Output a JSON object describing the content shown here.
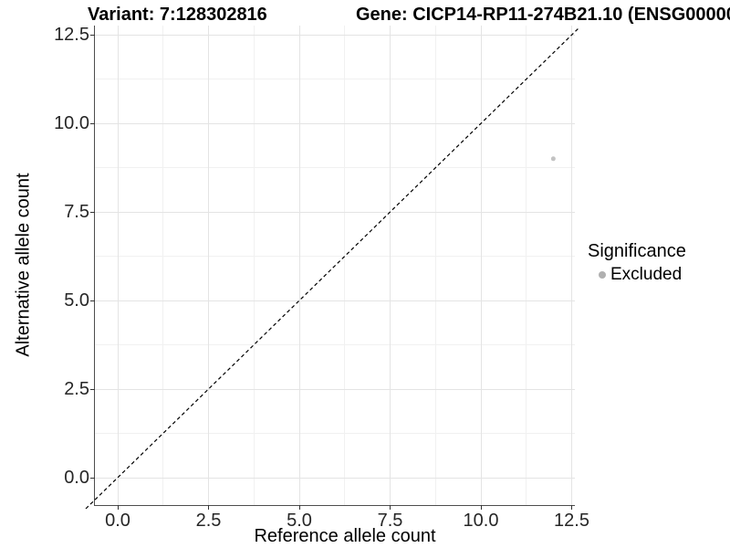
{
  "figure": {
    "title_variant": "Variant: 7:128302816",
    "title_gene": "Gene: CICP14-RP11-274B21.10 (ENSG00000",
    "background": "#ffffff"
  },
  "chart_data": {
    "type": "scatter",
    "title": "Variant: 7:128302816   Gene: CICP14-RP11-274B21.10 (ENSG00000",
    "xlabel": "Reference allele count",
    "ylabel": "Alternative allele count",
    "x_tick_labels": [
      "0.0",
      "2.5",
      "5.0",
      "7.5",
      "10.0",
      "12.5"
    ],
    "y_tick_labels": [
      "12.5",
      "10.0",
      "7.5",
      "5.0",
      "2.5",
      "0.0"
    ],
    "xlim": [
      -0.65,
      12.6
    ],
    "ylim": [
      -0.75,
      12.75
    ],
    "grid": "major+minor",
    "gridlines_on": true,
    "points": [
      {
        "x": 12,
        "y": 9,
        "series": "Excluded",
        "color": "#c3c3c3"
      }
    ],
    "reference_line": {
      "type": "identity y=x",
      "style": "dashed",
      "color": "#000000"
    },
    "legend": {
      "position": "right",
      "title": "Significance",
      "entries": [
        {
          "label": "Excluded",
          "marker": "circle",
          "color": "#b0b0b0"
        }
      ]
    }
  },
  "colors": {
    "grid_major": "#e4e4e4",
    "grid_minor": "#f1f1f1",
    "axis_line": "#4d4d4d",
    "tick_mark": "#333333",
    "tick_text": "#262626",
    "point": "#c3c3c3",
    "legend_dot": "#b0b0b0"
  }
}
